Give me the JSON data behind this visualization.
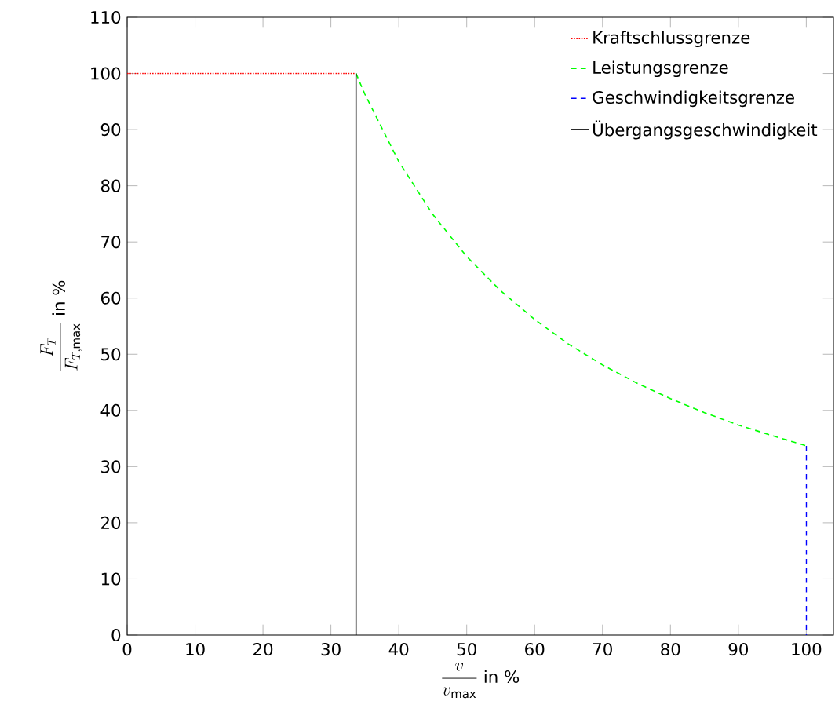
{
  "chart_data": {
    "type": "line",
    "xlabel": "\\frac{v}{v_{\\max}}\\text{ in }\\%",
    "ylabel": "\\frac{F_T}{F_{T,\\max}}\\text{ in }\\%",
    "xlim": [
      0,
      104
    ],
    "ylim": [
      0,
      110
    ],
    "xticks": [
      0,
      10,
      20,
      30,
      40,
      50,
      60,
      70,
      80,
      90,
      100
    ],
    "yticks": [
      0,
      10,
      20,
      30,
      40,
      50,
      60,
      70,
      80,
      90,
      100,
      110
    ],
    "legend": "top right",
    "marker": "none",
    "series": [
      {
        "name": "Kraftschlussgrenze",
        "color": "#ff0000",
        "line_style": "dotted",
        "x": [
          0,
          33.7
        ],
        "values": [
          100,
          100
        ]
      },
      {
        "name": "Leistungsgrenze",
        "color": "#00ff00",
        "line_style": "dashed",
        "x": [
          33.7,
          35,
          40,
          45,
          50,
          55,
          60,
          65,
          70,
          75,
          80,
          85,
          90,
          95,
          100
        ],
        "values": [
          100,
          96.3,
          84.3,
          74.9,
          67.4,
          61.3,
          56.2,
          51.8,
          48.1,
          44.9,
          42.1,
          39.6,
          37.4,
          35.5,
          33.7
        ]
      },
      {
        "name": "Geschwindigkeitsgrenze",
        "color": "#0000ff",
        "line_style": "dashed",
        "x": [
          100,
          100
        ],
        "values": [
          33.7,
          0
        ]
      },
      {
        "name": "Übergangsgeschwindigkeit",
        "color": "#000000",
        "line_style": "solid",
        "x": [
          33.7,
          33.7
        ],
        "values": [
          0,
          100
        ]
      }
    ]
  }
}
